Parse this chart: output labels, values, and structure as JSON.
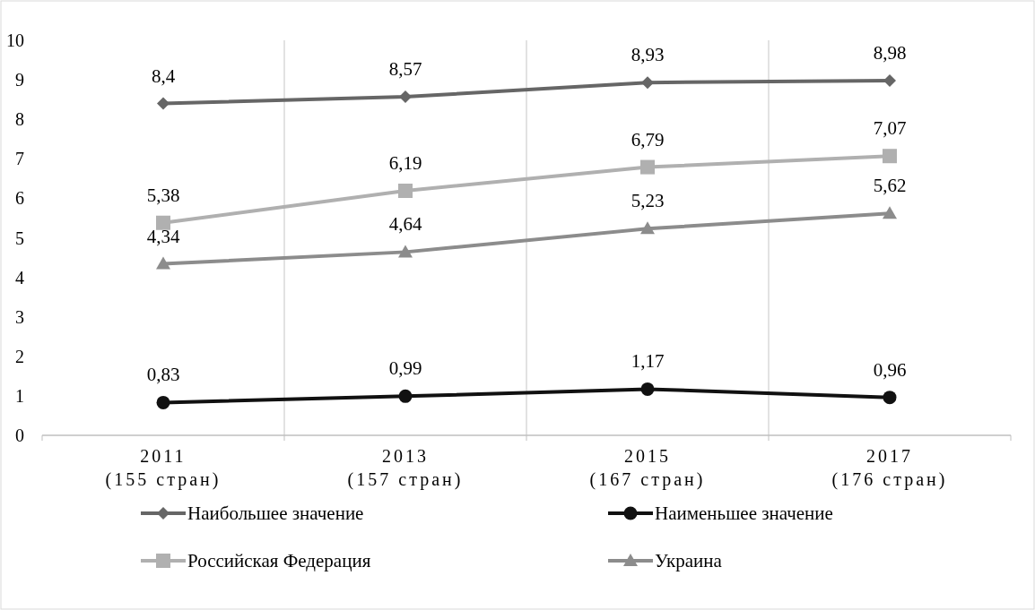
{
  "chart_data": {
    "type": "line",
    "categories": [
      "2011\n(155 стран)",
      "2013\n(157 стран)",
      "2015\n(167 стран)",
      "2017\n(176 стран)"
    ],
    "series": [
      {
        "name": "Наибольшее значение",
        "color": "#666666",
        "marker": "diamond",
        "values": [
          8.4,
          8.57,
          8.93,
          8.98
        ],
        "value_labels": [
          "8,4",
          "8,57",
          "8,93",
          "8,98"
        ]
      },
      {
        "name": "Наименьшее значение",
        "color": "#111111",
        "marker": "circle",
        "values": [
          0.83,
          0.99,
          1.17,
          0.96
        ],
        "value_labels": [
          "0,83",
          "0,99",
          "1,17",
          "0,96"
        ]
      },
      {
        "name": "Российская Федерация",
        "color": "#b0b0b0",
        "marker": "square",
        "values": [
          5.38,
          6.19,
          6.79,
          7.07
        ],
        "value_labels": [
          "5,38",
          "6,19",
          "6,79",
          "7,07"
        ]
      },
      {
        "name": "Украина",
        "color": "#8c8c8c",
        "marker": "triangle",
        "values": [
          4.34,
          4.64,
          5.23,
          5.62
        ],
        "value_labels": [
          "4,34",
          "4,64",
          "5,23",
          "5,62"
        ]
      }
    ],
    "ylim": [
      0,
      10
    ],
    "yticks": [
      0,
      1,
      2,
      3,
      4,
      5,
      6,
      7,
      8,
      9,
      10
    ],
    "grid": "x",
    "legend": "bottom"
  }
}
